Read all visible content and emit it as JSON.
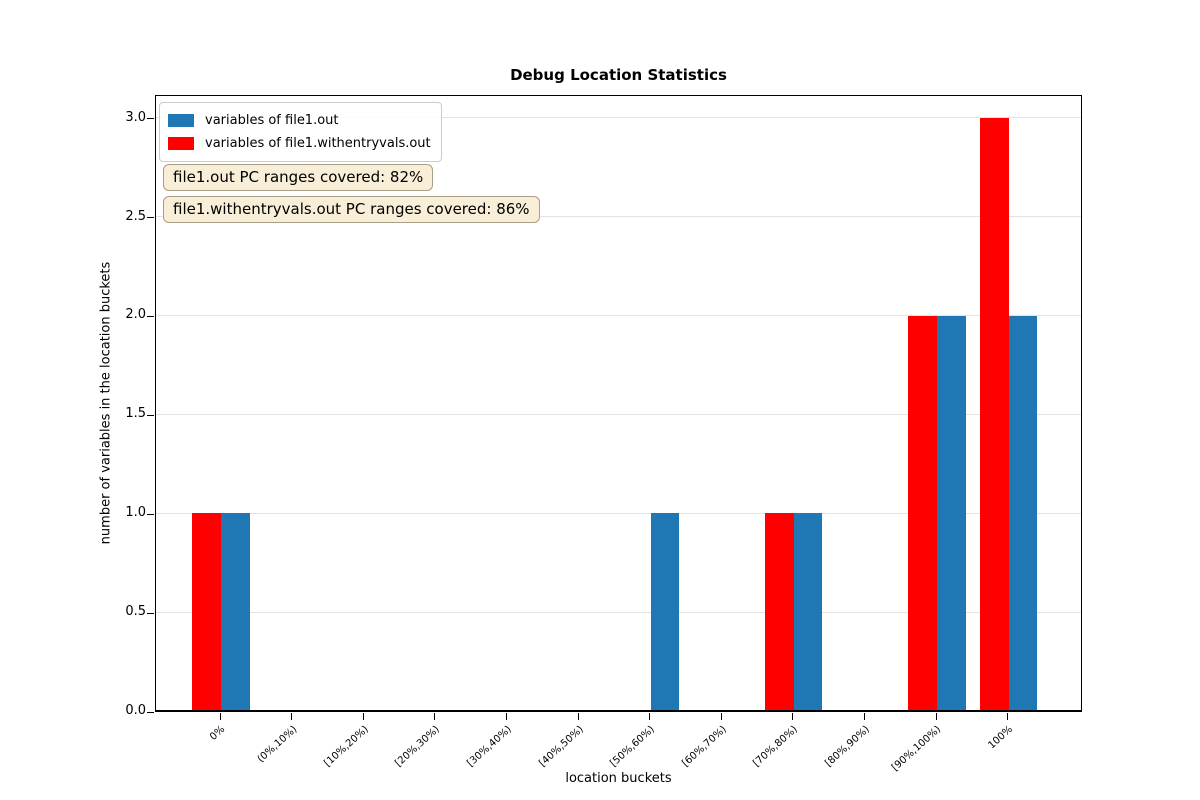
{
  "figure": {
    "title": "Debug Location Statistics",
    "xlabel": "location buckets",
    "ylabel": "number of variables in the location buckets"
  },
  "annotations": [
    {
      "text": "file1.out PC ranges covered: 82%",
      "coverage_percent": 82,
      "file": "file1.out"
    },
    {
      "text": "file1.withentryvals.out PC ranges covered: 86%",
      "coverage_percent": 86,
      "file": "file1.withentryvals.out"
    }
  ],
  "chart_data": {
    "type": "bar",
    "title": "Debug Location Statistics",
    "xlabel": "location buckets",
    "ylabel": "number of variables in the location buckets",
    "categories": [
      "0%",
      "(0%,10%)",
      "[10%,20%)",
      "[20%,30%)",
      "[30%,40%)",
      "[40%,50%)",
      "[50%,60%)",
      "[60%,70%)",
      "[70%,80%)",
      "[80%,90%)",
      "[90%,100%)",
      "100%"
    ],
    "series": [
      {
        "name": "variables of file1.out",
        "color": "#1f77b4",
        "side": "right",
        "values": [
          1,
          0,
          0,
          0,
          0,
          0,
          1,
          0,
          1,
          0,
          2,
          2
        ]
      },
      {
        "name": "variables of file1.withentryvals.out",
        "color": "#ff0000",
        "side": "left",
        "values": [
          1,
          0,
          0,
          0,
          0,
          0,
          0,
          0,
          1,
          0,
          2,
          3
        ]
      }
    ],
    "yticks": [
      0.0,
      0.5,
      1.0,
      1.5,
      2.0,
      2.5,
      3.0
    ],
    "ylim": [
      0,
      3.12
    ],
    "bar_width_units": 0.4,
    "grid": "horizontal-y",
    "legend_position": "upper left"
  }
}
